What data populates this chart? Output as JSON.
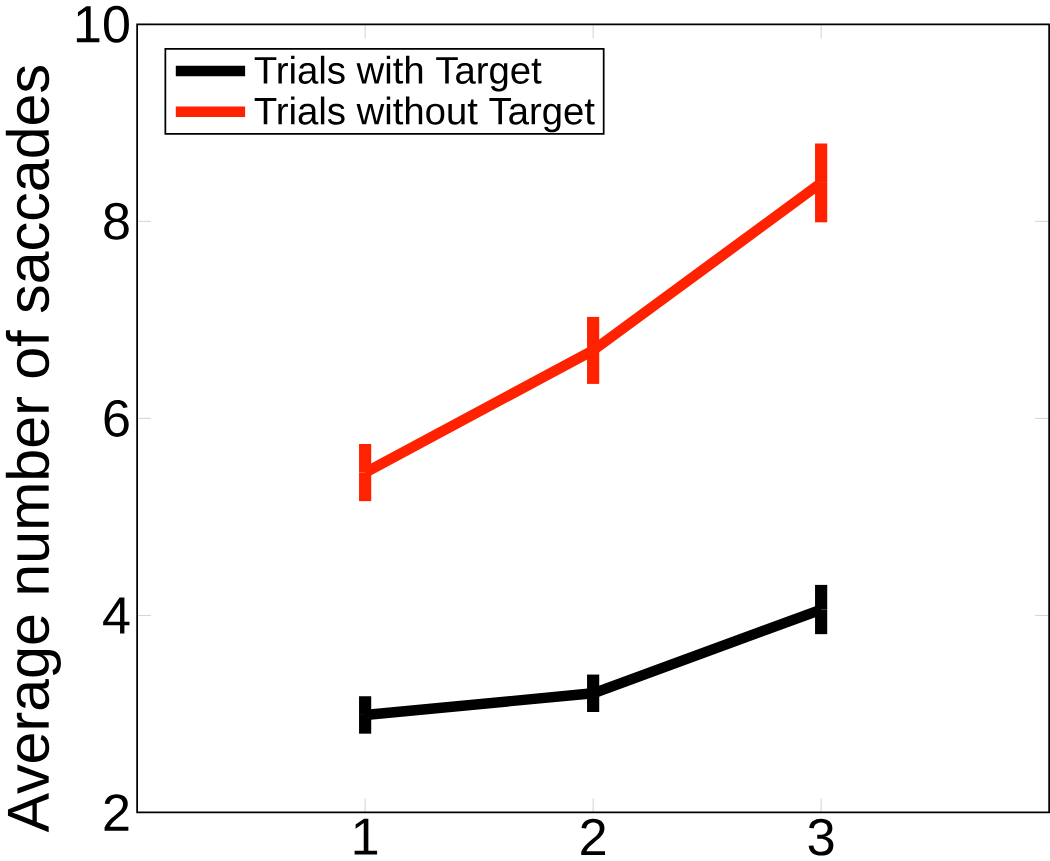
{
  "chart_data": {
    "type": "line",
    "ylabel": "Average number of saccades",
    "x": [
      1,
      2,
      3
    ],
    "series": [
      {
        "name": "Trials with Target",
        "color": "#000000",
        "values": [
          2.99,
          3.21,
          4.06
        ],
        "errors": [
          0.19,
          0.19,
          0.25
        ]
      },
      {
        "name": "Trials without Target",
        "color": "#ff2200",
        "values": [
          5.45,
          6.69,
          8.39
        ],
        "errors": [
          0.29,
          0.34,
          0.4
        ]
      }
    ],
    "xlim": [
      0,
      4
    ],
    "ylim": [
      2,
      10
    ],
    "xticks": [
      1,
      2,
      3
    ],
    "yticks": [
      2,
      4,
      6,
      8,
      10
    ],
    "legend": "top left",
    "grid": false,
    "marker": "none",
    "line_style": "solid"
  }
}
